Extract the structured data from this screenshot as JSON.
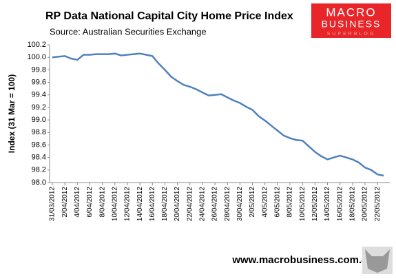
{
  "chart_data": {
    "type": "line",
    "title": "RP Data National Capital City Home Price Index",
    "subtitle": "Source: Australian Securities Exchange",
    "y_label": "Index (31 Mar = 100)",
    "categories": [
      "31/03/2012",
      null,
      "2/04/2012",
      null,
      "4/04/2012",
      null,
      "6/04/2012",
      null,
      "8/04/2012",
      null,
      "10/04/2012",
      null,
      "12/04/2012",
      null,
      "14/04/2012",
      null,
      "16/04/2012",
      null,
      "18/04/2012",
      null,
      "20/04/2012",
      null,
      "22/04/2012",
      null,
      "24/04/2012",
      null,
      "26/04/2012",
      null,
      "28/04/2012",
      null,
      "30/04/2012",
      null,
      "2/05/2012",
      null,
      "4/05/2012",
      null,
      "6/05/2012",
      null,
      "8/05/2012",
      null,
      "10/05/2012",
      null,
      "12/05/2012",
      null,
      "14/05/2012",
      null,
      "16/05/2012",
      null,
      "18/05/2012",
      null,
      "20/05/2012",
      null,
      "22/05/2012",
      null
    ],
    "series": [
      {
        "name": "Index",
        "color": "#4f81bd",
        "values": [
          100.0,
          100.01,
          100.02,
          99.98,
          99.96,
          100.04,
          100.04,
          100.05,
          100.05,
          100.05,
          100.06,
          100.03,
          100.04,
          100.05,
          100.06,
          100.04,
          100.02,
          99.9,
          99.8,
          99.69,
          99.62,
          99.56,
          99.53,
          99.49,
          99.44,
          99.39,
          99.4,
          99.41,
          99.36,
          99.31,
          99.27,
          99.21,
          99.16,
          99.06,
          98.99,
          98.91,
          98.83,
          98.75,
          98.71,
          98.68,
          98.67,
          98.58,
          98.49,
          98.42,
          98.37,
          98.4,
          98.43,
          98.4,
          98.37,
          98.32,
          98.24,
          98.2,
          98.13,
          98.11
        ]
      }
    ],
    "ylim": [
      98.0,
      100.2
    ],
    "yticks": [
      {
        "value": 98.0,
        "label": "98.0"
      },
      98.2,
      98.4,
      98.6,
      98.8,
      {
        "value": 99.0,
        "label": "99.0"
      },
      99.2,
      99.4,
      99.6,
      99.8,
      {
        "value": 100.0,
        "label": "100.0"
      },
      100.2
    ],
    "grid": false
  },
  "logo": {
    "line1": "MACRO",
    "line2": "BUSINESS",
    "line3": "SUPERBLOG"
  },
  "footer": "www.macrobusiness.com.au"
}
